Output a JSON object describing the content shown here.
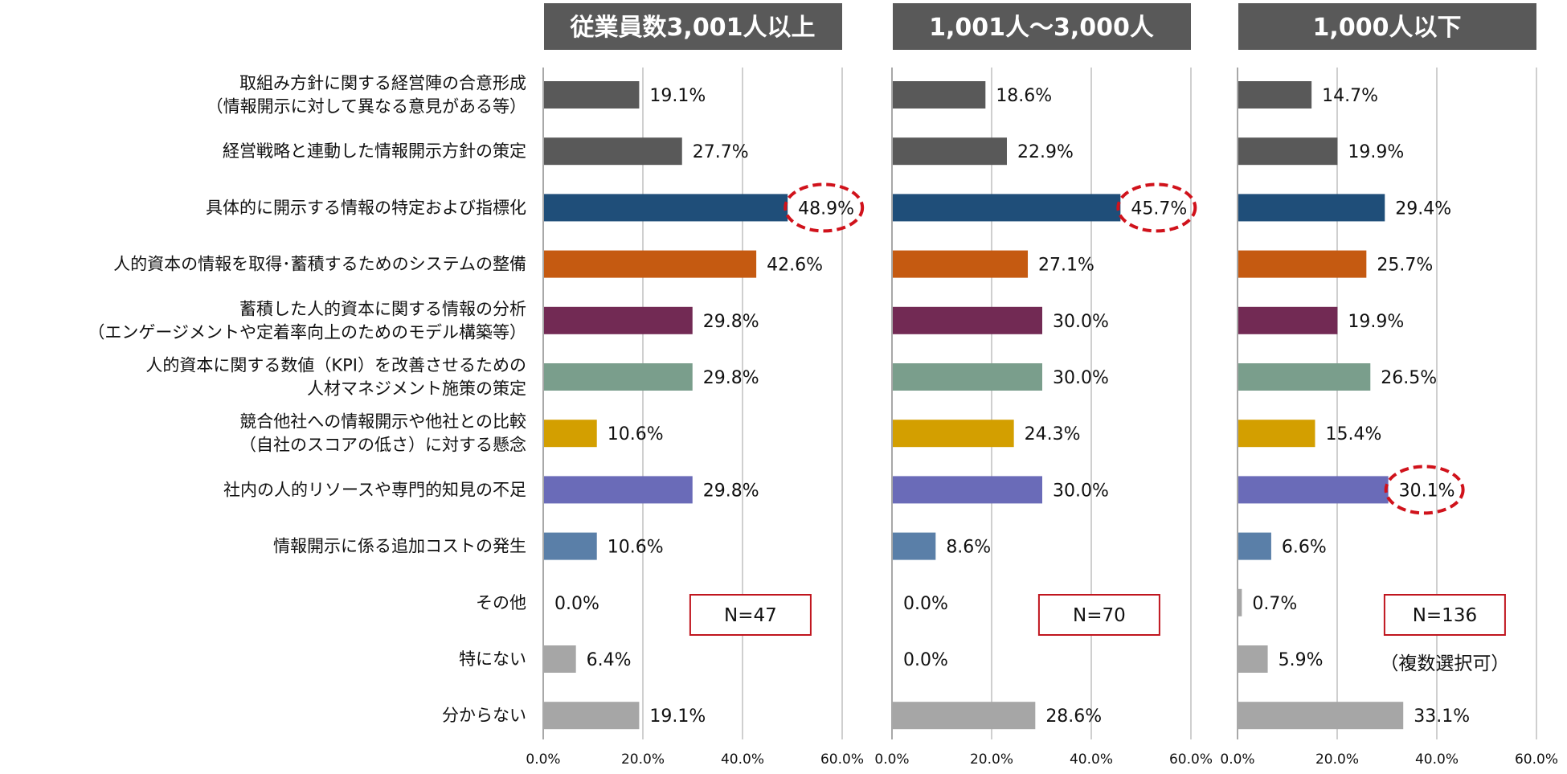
{
  "chart_data": {
    "type": "bar",
    "orientation": "horizontal",
    "categories": [
      [
        "取組み方針に関する経営陣の合意形成",
        "（情報開示に対して異なる意見がある等）"
      ],
      [
        "経営戦略と連動した情報開示方針の策定"
      ],
      [
        "具体的に開示する情報の特定および指標化"
      ],
      [
        "人的資本の情報を取得･蓄積するためのシステムの整備"
      ],
      [
        "蓄積した人的資本に関する情報の分析",
        "（エンゲージメントや定着率向上のためのモデル構築等）"
      ],
      [
        "人的資本に関する数値（KPI）を改善させるための",
        "人材マネジメント施策の策定"
      ],
      [
        "競合他社への情報開示や他社との比較",
        "（自社のスコアの低さ）に対する懸念"
      ],
      [
        "社内の人的リソースや専門的知見の不足"
      ],
      [
        "情報開示に係る追加コストの発生"
      ],
      [
        "その他"
      ],
      [
        "特にない"
      ],
      [
        "分からない"
      ]
    ],
    "bar_colors": [
      "#595959",
      "#595959",
      "#1f4e79",
      "#c55a11",
      "#722a54",
      "#7a9e8c",
      "#d39f00",
      "#6a6bb8",
      "#5a7fa8",
      "#a6a6a6",
      "#a6a6a6",
      "#a6a6a6"
    ],
    "xlim": [
      0,
      60
    ],
    "xticks": [
      "0.0%",
      "20.0%",
      "40.0%",
      "60.0%"
    ],
    "xtick_values": [
      0,
      20,
      40,
      60
    ],
    "value_suffix": "%",
    "highlight_color": "#d0121b",
    "panels": [
      {
        "title": "従業員数3,001人以上",
        "n_label": "N=47",
        "values": [
          19.1,
          27.7,
          48.9,
          42.6,
          29.8,
          29.8,
          10.6,
          29.8,
          10.6,
          0.0,
          6.4,
          19.1
        ],
        "value_labels": [
          "19.1%",
          "27.7%",
          "48.9%",
          "42.6%",
          "29.8%",
          "29.8%",
          "10.6%",
          "29.8%",
          "10.6%",
          "0.0%",
          "6.4%",
          "19.1%"
        ],
        "highlight_index": 2
      },
      {
        "title": "1,001人～3,000人",
        "n_label": "N=70",
        "values": [
          18.6,
          22.9,
          45.7,
          27.1,
          30.0,
          30.0,
          24.3,
          30.0,
          8.6,
          0.0,
          0.0,
          28.6
        ],
        "value_labels": [
          "18.6%",
          "22.9%",
          "45.7%",
          "27.1%",
          "30.0%",
          "30.0%",
          "24.3%",
          "30.0%",
          "8.6%",
          "0.0%",
          "0.0%",
          "28.6%"
        ],
        "highlight_index": 2
      },
      {
        "title": "1,000人以下",
        "n_label": "N=136",
        "note": "（複数選択可）",
        "values": [
          14.7,
          19.9,
          29.4,
          25.7,
          19.9,
          26.5,
          15.4,
          30.1,
          6.6,
          0.7,
          5.9,
          33.1
        ],
        "value_labels": [
          "14.7%",
          "19.9%",
          "29.4%",
          "25.7%",
          "19.9%",
          "26.5%",
          "15.4%",
          "30.1%",
          "6.6%",
          "0.7%",
          "5.9%",
          "33.1%"
        ],
        "highlight_index": 7
      }
    ]
  }
}
